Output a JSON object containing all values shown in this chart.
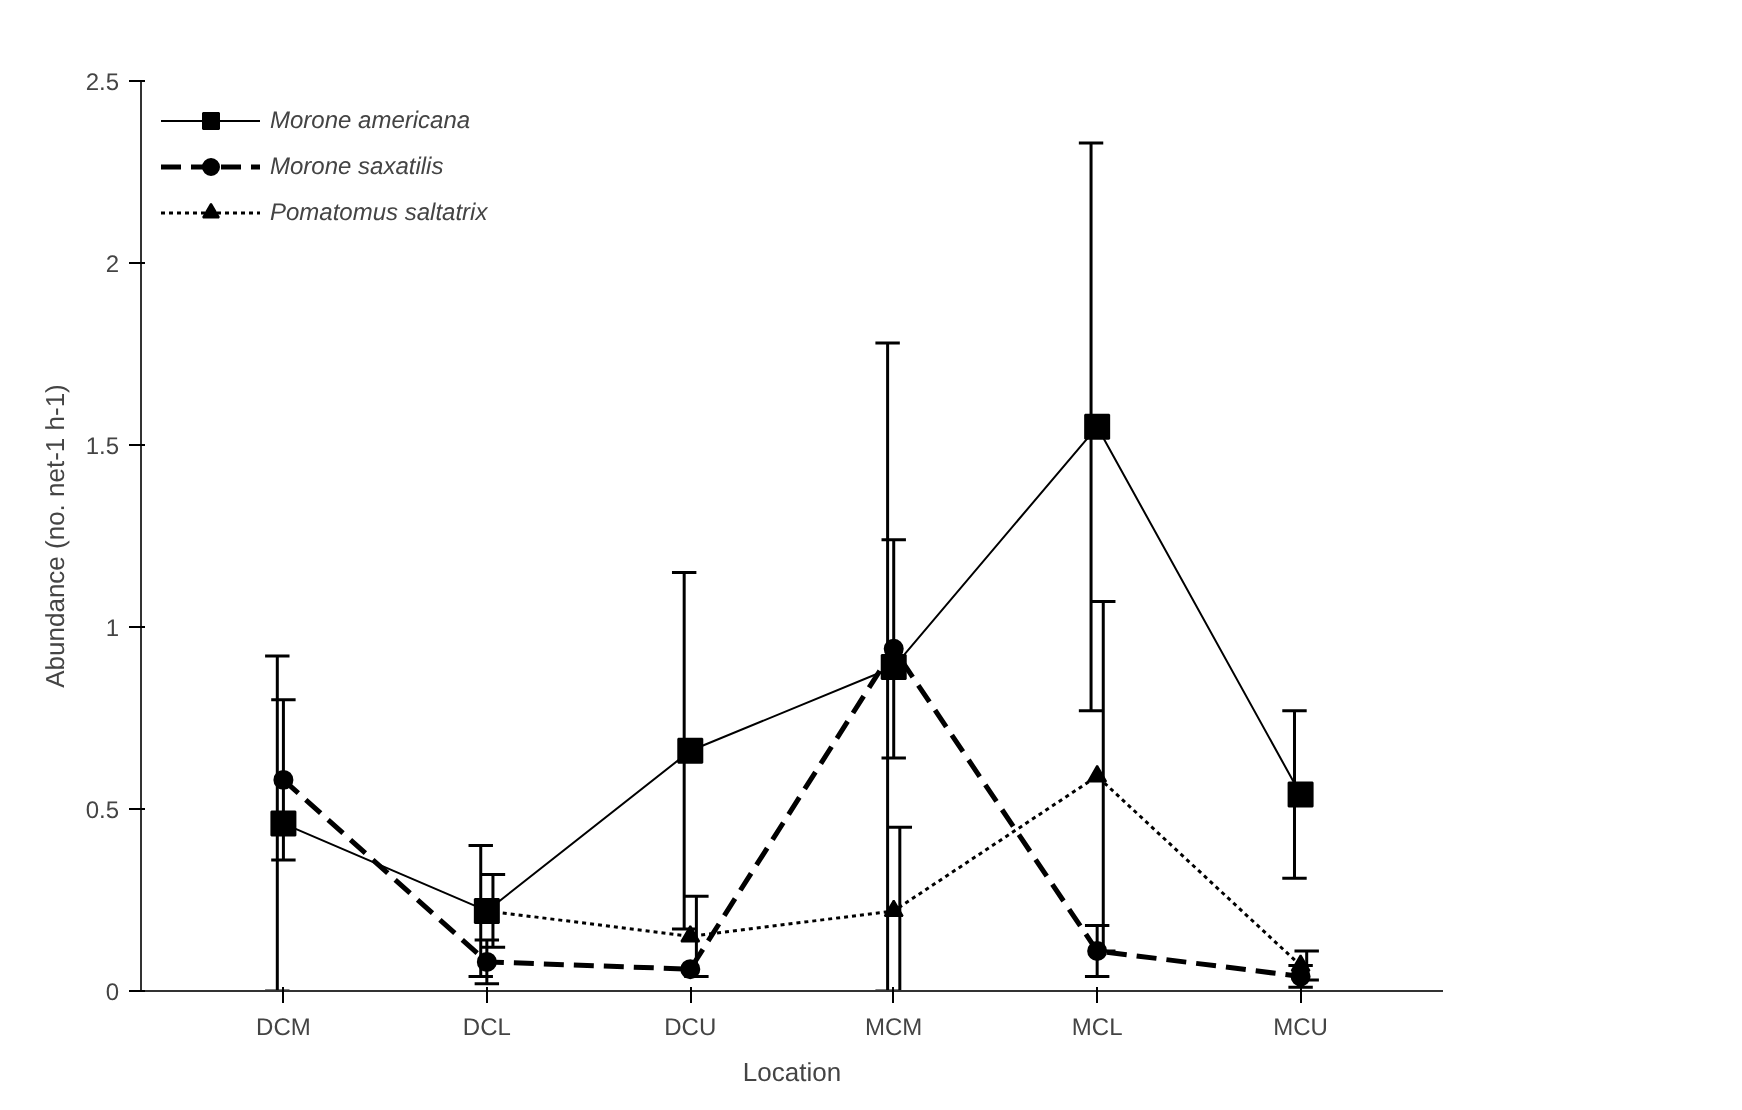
{
  "chart_data": {
    "type": "line",
    "xlabel": "Location",
    "ylabel": "Abundance (no. net-1 h-1)",
    "categories": [
      "DCM",
      "DCL",
      "DCU",
      "MCM",
      "MCL",
      "MCU"
    ],
    "ylim": [
      0,
      2.5
    ],
    "yticks": [
      0,
      0.5,
      1,
      1.5,
      2,
      2.5
    ],
    "grid": false,
    "legend": "top left",
    "series": [
      {
        "name": "Morone americana",
        "color": "#000000",
        "marker": "square",
        "line_style": "solid",
        "values": [
          0.46,
          0.22,
          0.66,
          0.89,
          1.55,
          0.54
        ],
        "errors": [
          0.46,
          0.18,
          0.49,
          0.89,
          0.78,
          0.23
        ]
      },
      {
        "name": "Morone saxatilis",
        "color": "#000000",
        "marker": "circle",
        "line_style": "dashed",
        "values": [
          0.58,
          0.08,
          0.06,
          0.94,
          0.11,
          0.04
        ],
        "errors": [
          0.22,
          0.06,
          null,
          0.3,
          0.07,
          0.03
        ]
      },
      {
        "name": "Pomatomus saltatrix",
        "color": "#000000",
        "marker": "triangle",
        "line_style": "dotted",
        "values": [
          null,
          0.22,
          0.15,
          0.22,
          0.59,
          0.07
        ],
        "errors": [
          null,
          0.1,
          0.11,
          0.23,
          0.48,
          0.04
        ]
      }
    ]
  }
}
